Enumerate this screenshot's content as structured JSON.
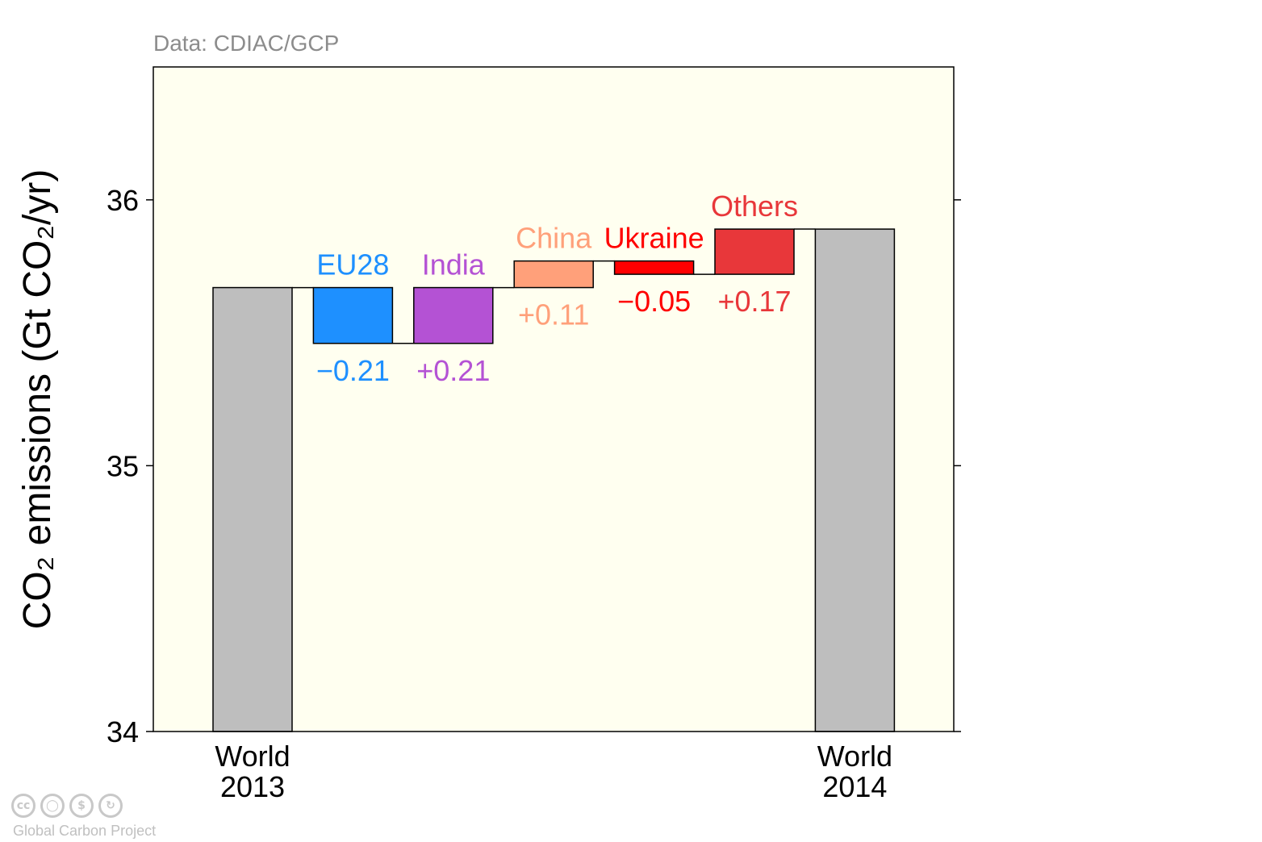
{
  "source_note": "Data: CDIAC/GCP",
  "credit": "Global Carbon Project",
  "license_icons": [
    "cc-icon",
    "attribution-icon",
    "noncommercial-icon",
    "share-alike-icon"
  ],
  "colors": {
    "panel_background": "#fffff0",
    "total_bar": "#bebebe",
    "EU28": "#1e90ff",
    "India": "#b452d4",
    "China": "#ffa07a",
    "Ukraine": "#ff0000",
    "Others": "#e8373a"
  },
  "chart_data": {
    "type": "bar",
    "subtype": "waterfall",
    "ylabel": "CO₂ emissions (Gt CO₂/yr)",
    "ylim": [
      34,
      36.5
    ],
    "yticks": [
      34,
      35,
      36
    ],
    "categories": [
      {
        "key": "world2013",
        "label_lines": [
          "World",
          "2013"
        ],
        "kind": "total",
        "value": 35.67
      },
      {
        "key": "eu28",
        "name": "EU28",
        "kind": "change",
        "delta_label": "−0.21",
        "start": 35.67,
        "end": 35.46
      },
      {
        "key": "india",
        "name": "India",
        "kind": "change",
        "delta_label": "+0.21",
        "start": 35.46,
        "end": 35.67
      },
      {
        "key": "china",
        "name": "China",
        "kind": "change",
        "delta_label": "+0.11",
        "start": 35.67,
        "end": 35.77
      },
      {
        "key": "ukraine",
        "name": "Ukraine",
        "kind": "change",
        "delta_label": "−0.05",
        "start": 35.77,
        "end": 35.72
      },
      {
        "key": "others",
        "name": "Others",
        "kind": "change",
        "delta_label": "+0.17",
        "start": 35.72,
        "end": 35.89
      },
      {
        "key": "world2014",
        "label_lines": [
          "World",
          "2014"
        ],
        "kind": "total",
        "value": 35.89
      }
    ]
  }
}
